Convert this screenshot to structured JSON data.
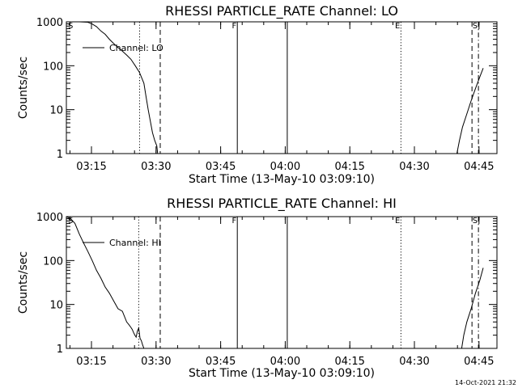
{
  "chart_data": [
    {
      "type": "line",
      "title": "RHESSI PARTICLE_RATE Channel: LO",
      "ylabel": "Counts/sec",
      "xlabel": "Start Time (13-May-10 03:09:10)",
      "x_unit": "minutes after 03:09:10",
      "xlim": [
        0,
        100
      ],
      "ylim": [
        1,
        1000
      ],
      "y_scale": "log",
      "yticks": [
        1,
        10,
        100,
        1000
      ],
      "ytick_labels": [
        "1",
        "10",
        "100",
        "1000"
      ],
      "xticks": [
        5.83,
        20.83,
        35.83,
        50.83,
        65.83,
        80.83,
        95.83
      ],
      "xtick_labels": [
        "03:15",
        "03:30",
        "03:45",
        "04:00",
        "04:15",
        "04:30",
        "04:45"
      ],
      "legend": {
        "label": "Channel: LO",
        "position": "top-left"
      },
      "series": [
        {
          "x": [
            0.0,
            1.5,
            3.0,
            5.0,
            6.0,
            7.0,
            8.0,
            9.0,
            10.0,
            11.0,
            12.0,
            13.0,
            14.0,
            15.0,
            16.0,
            17.0,
            18.0,
            18.5,
            19.0,
            20.0,
            20.5,
            21.0,
            21.2
          ],
          "y": [
            1000,
            1000,
            1000,
            980,
            890,
            780,
            620,
            520,
            400,
            320,
            260,
            215,
            175,
            140,
            100,
            70,
            40,
            20,
            10,
            3,
            2,
            1.5,
            1.0
          ]
        },
        {
          "x": [
            90.7,
            91.3,
            92.0,
            93.0,
            94.0,
            95.0,
            96.0,
            96.8
          ],
          "y": [
            1.0,
            2.0,
            4.0,
            8.0,
            16,
            30,
            55,
            88
          ]
        }
      ],
      "vlines": [
        {
          "x": 17.0,
          "style": "dotted"
        },
        {
          "x": 21.8,
          "style": "dashed"
        },
        {
          "x": 39.7,
          "style": "solid",
          "label": "F"
        },
        {
          "x": 51.3,
          "style": "solid"
        },
        {
          "x": 77.7,
          "style": "dotted",
          "label": "E"
        },
        {
          "x": 94.2,
          "style": "dashed"
        },
        {
          "x": 95.7,
          "style": "dashdot",
          "label": "S"
        }
      ],
      "corner_mark": "S"
    },
    {
      "type": "line",
      "title": "RHESSI PARTICLE_RATE Channel: HI",
      "ylabel": "Counts/sec",
      "xlabel": "Start Time (13-May-10 03:09:10)",
      "x_unit": "minutes after 03:09:10",
      "xlim": [
        0,
        100
      ],
      "ylim": [
        1,
        1000
      ],
      "y_scale": "log",
      "yticks": [
        1,
        10,
        100,
        1000
      ],
      "ytick_labels": [
        "1",
        "10",
        "100",
        "1000"
      ],
      "xticks": [
        5.83,
        20.83,
        35.83,
        50.83,
        65.83,
        80.83,
        95.83
      ],
      "xtick_labels": [
        "03:15",
        "03:30",
        "03:45",
        "04:00",
        "04:15",
        "04:30",
        "04:45"
      ],
      "legend": {
        "label": "Channel: HI",
        "position": "top-left"
      },
      "series": [
        {
          "x": [
            0.0,
            1.0,
            2.0,
            3.0,
            4.0,
            5.0,
            6.0,
            7.0,
            8.0,
            9.0,
            10.0,
            11.0,
            12.0,
            13.0,
            14.0,
            14.5,
            15.0,
            15.3,
            15.6,
            15.9,
            16.2,
            16.5,
            16.8,
            17.1,
            17.4,
            17.7,
            18.0
          ],
          "y": [
            1000,
            900,
            700,
            400,
            250,
            160,
            100,
            60,
            40,
            25,
            18,
            12,
            8,
            7,
            4,
            3.5,
            3.0,
            2.7,
            2.3,
            2.0,
            1.8,
            2.5,
            2.9,
            1.7,
            1.5,
            1.2,
            1.0
          ]
        },
        {
          "x": [
            91.8,
            92.3,
            93.0,
            94.0,
            95.0,
            96.0,
            96.8
          ],
          "y": [
            1.0,
            2.0,
            4.0,
            8.0,
            18,
            35,
            68
          ]
        }
      ],
      "vlines": [
        {
          "x": 16.8,
          "style": "dotted"
        },
        {
          "x": 21.8,
          "style": "dashed"
        },
        {
          "x": 39.7,
          "style": "solid",
          "label": "F"
        },
        {
          "x": 51.3,
          "style": "solid"
        },
        {
          "x": 77.7,
          "style": "dotted",
          "label": "E"
        },
        {
          "x": 94.2,
          "style": "dashed"
        },
        {
          "x": 95.7,
          "style": "dashdot",
          "label": "S"
        }
      ],
      "corner_mark": "S"
    }
  ],
  "footer": {
    "timestamp": "14-Oct-2021 21:32"
  }
}
